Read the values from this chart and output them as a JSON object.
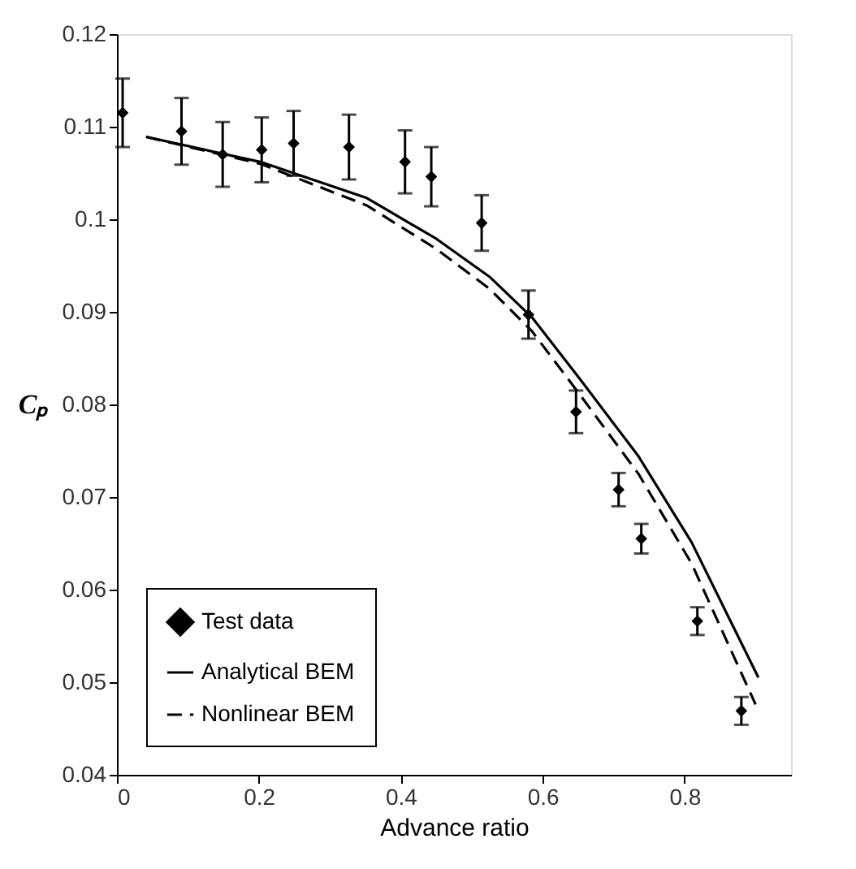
{
  "chart_data": {
    "type": "scatter",
    "xlabel": "Advance ratio",
    "ylabel": "Cₚ",
    "xlim": [
      0,
      0.95
    ],
    "xticks": [
      0,
      0.2,
      0.4,
      0.6,
      0.8
    ],
    "ylim": [
      0.04,
      0.12
    ],
    "yticks": [
      0.04,
      0.05,
      0.06,
      0.07,
      0.08,
      0.09,
      0.1,
      0.11,
      0.12
    ],
    "grid": false,
    "legend": "bottom left",
    "series": [
      {
        "name": "Test data",
        "marker": "diamond",
        "color": "#000000",
        "x": [
          0.008,
          0.091,
          0.149,
          0.204,
          0.249,
          0.327,
          0.406,
          0.443,
          0.514,
          0.58,
          0.647,
          0.707,
          0.739,
          0.818,
          0.88
        ],
        "values": [
          0.1115,
          0.1095,
          0.107,
          0.1075,
          0.1082,
          0.1078,
          0.1062,
          0.1046,
          0.0996,
          0.0897,
          0.0792,
          0.0708,
          0.0655,
          0.0566,
          0.0469
        ],
        "errors": [
          0.0037,
          0.0036,
          0.0035,
          0.0035,
          0.0035,
          0.0035,
          0.0034,
          0.0032,
          0.003,
          0.0026,
          0.0023,
          0.0018,
          0.0016,
          0.0015,
          0.0015
        ]
      },
      {
        "name": "Analytical BEM",
        "type": "line",
        "line_style": "solid",
        "color": "#000000",
        "x": [
          0.041,
          0.202,
          0.352,
          0.45,
          0.525,
          0.585,
          0.653,
          0.735,
          0.81,
          0.904
        ],
        "values": [
          0.1089,
          0.1062,
          0.1023,
          0.0979,
          0.0938,
          0.0894,
          0.0827,
          0.0744,
          0.0651,
          0.0505
        ]
      },
      {
        "name": "Nonlinear BEM",
        "type": "line",
        "line_style": "dashed",
        "color": "#000000",
        "x": [
          0.041,
          0.202,
          0.352,
          0.45,
          0.525,
          0.585,
          0.653,
          0.735,
          0.81,
          0.9
        ],
        "values": [
          0.1089,
          0.106,
          0.1015,
          0.0968,
          0.0925,
          0.0879,
          0.081,
          0.0725,
          0.0628,
          0.0476
        ]
      }
    ]
  }
}
